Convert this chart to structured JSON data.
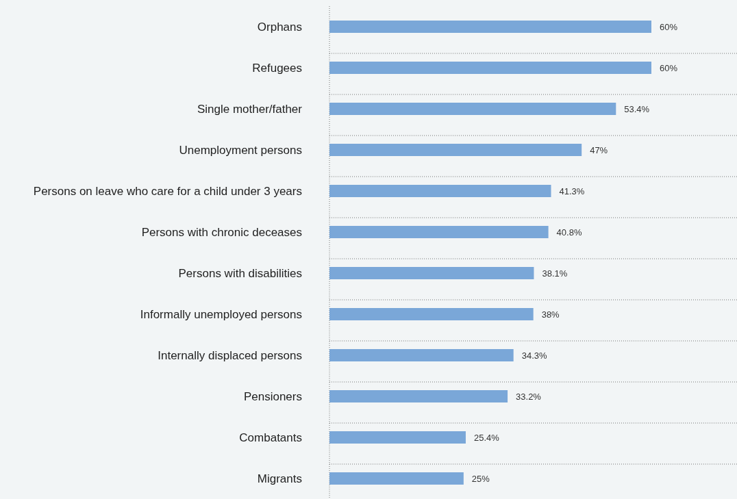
{
  "chart_data": {
    "type": "bar",
    "orientation": "horizontal",
    "categories": [
      "Orphans",
      "Refugees",
      "Single mother/father",
      "Unemployment persons",
      "Persons on leave who care for a child under 3 years",
      "Persons with chronic deceases",
      "Persons with disabilities",
      "Informally unemployed persons",
      "Internally displaced persons",
      "Pensioners",
      "Combatants",
      "Migrants"
    ],
    "values": [
      60,
      60,
      53.4,
      47,
      41.3,
      40.8,
      38.1,
      38,
      34.3,
      33.2,
      25.4,
      25
    ],
    "value_labels": [
      "60%",
      "60%",
      "53.4%",
      "47%",
      "41.3%",
      "40.8%",
      "38.1%",
      "38%",
      "34.3%",
      "33.2%",
      "25.4%",
      "25%"
    ],
    "color": "#7aa7d8",
    "grid": "y",
    "tick_labels": "y"
  }
}
